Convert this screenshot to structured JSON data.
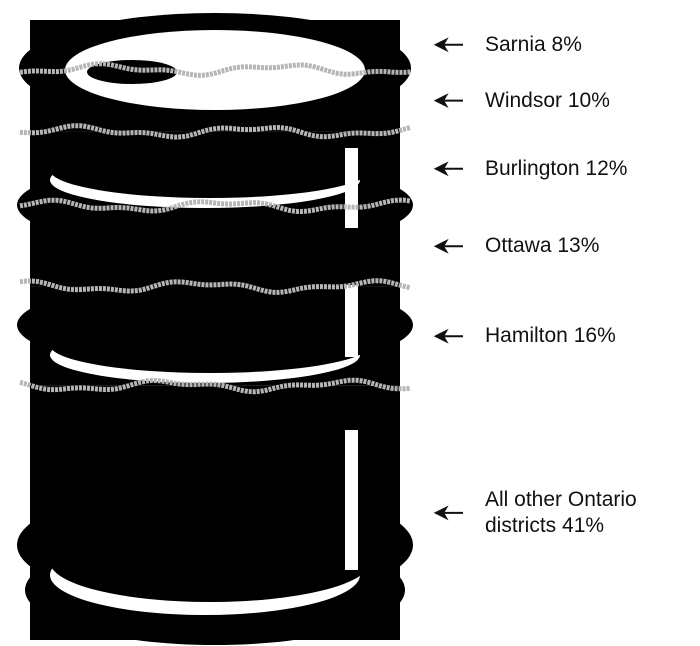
{
  "chart_data": {
    "type": "barrel",
    "categories": [
      "Sarnia",
      "Windsor",
      "Burlington",
      "Ottawa",
      "Hamilton",
      "All other Ontario districts"
    ],
    "values": [
      8,
      10,
      12,
      13,
      16,
      41
    ],
    "value_labels": [
      "8%",
      "10%",
      "12%",
      "13%",
      "16%",
      "41%"
    ],
    "color": "#000000"
  }
}
